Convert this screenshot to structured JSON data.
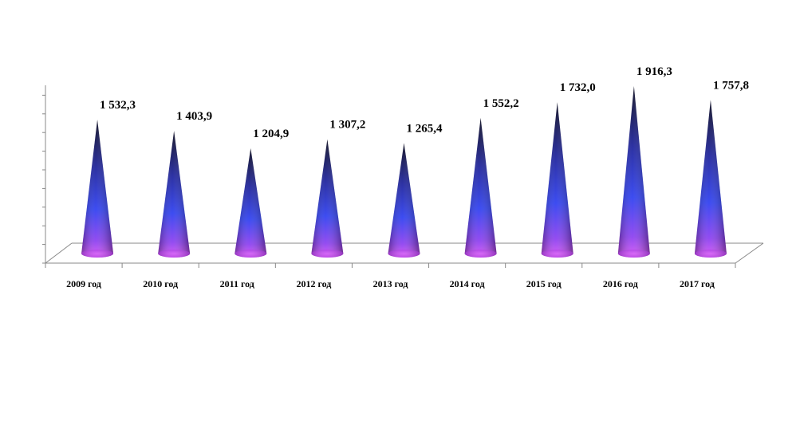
{
  "chart_data": {
    "type": "bar",
    "shape": "cone",
    "categories": [
      "2009 год",
      "2010 год",
      "2011 год",
      "2012 год",
      "2013 год",
      "2014 год",
      "2015 год",
      "2016 год",
      "2017 год"
    ],
    "values": [
      1532.3,
      1403.9,
      1204.9,
      1307.2,
      1265.4,
      1552.2,
      1732.0,
      1916.3,
      1757.8
    ],
    "value_labels": [
      "1 532,3",
      "1 403,9",
      "1 204,9",
      "1 307,2",
      "1 265,4",
      "1 552,2",
      "1 732,0",
      "1 916,3",
      "1 757,8"
    ],
    "title": "",
    "xlabel": "",
    "ylabel": "",
    "ylim": [
      0,
      2000
    ],
    "grid": false,
    "legend": "none",
    "colors": {
      "cone_top": "#0a0a2a",
      "cone_mid": "#2233dd",
      "cone_base": "#cc44ee",
      "floor_line": "#888888"
    }
  }
}
